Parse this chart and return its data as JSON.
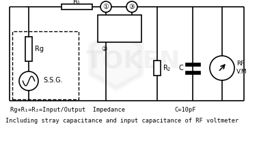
{
  "bg_color": "#ffffff",
  "line_color": "#000000",
  "line_width": 1.2,
  "fig_width": 3.79,
  "fig_height": 2.16,
  "dpi": 100,
  "bottom_text1": "Rg+R₁=R₂=Input/Output  Impedance",
  "bottom_text2": "C=10pF",
  "bottom_text3": "Including stray capacitance and input capacitance of RF voltmeter",
  "watermark_text": "TOKEN"
}
